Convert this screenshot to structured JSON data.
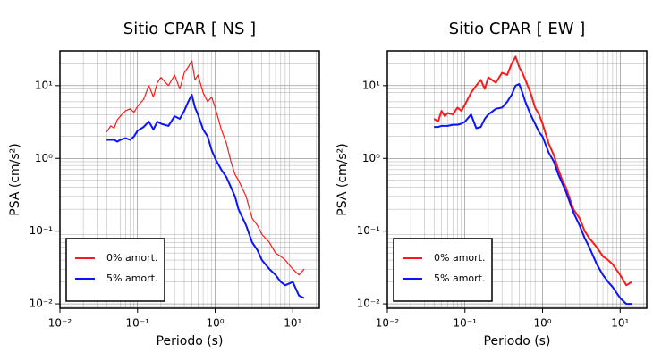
{
  "chart_data": [
    {
      "type": "line",
      "title": "Sitio CPAR [ NS ]",
      "x_label": "Periodo (s)",
      "y_label": "PSA (cm/s²)",
      "x": [
        0.04,
        0.045,
        0.05,
        0.055,
        0.06,
        0.07,
        0.08,
        0.09,
        0.1,
        0.12,
        0.14,
        0.16,
        0.18,
        0.2,
        0.25,
        0.3,
        0.35,
        0.4,
        0.45,
        0.5,
        0.55,
        0.6,
        0.7,
        0.8,
        0.9,
        1,
        1.2,
        1.4,
        1.6,
        1.8,
        2,
        2.5,
        3,
        3.5,
        4,
        5,
        6,
        7,
        8,
        10,
        12,
        14
      ],
      "series": [
        {
          "name": "0% amort.",
          "color": "#ff1a1a",
          "values": [
            2.3,
            2.8,
            2.6,
            3.4,
            3.8,
            4.5,
            4.8,
            4.3,
            5.2,
            6.5,
            10,
            7,
            11,
            13,
            10,
            14,
            9,
            15,
            18,
            22,
            12,
            14,
            8,
            6,
            7,
            5,
            2.5,
            1.6,
            0.9,
            0.6,
            0.5,
            0.3,
            0.15,
            0.12,
            0.09,
            0.07,
            0.05,
            0.045,
            0.04,
            0.03,
            0.025,
            0.03
          ]
        },
        {
          "name": "5% amort.",
          "color": "#0a14ff",
          "values": [
            1.8,
            1.8,
            1.8,
            1.7,
            1.8,
            1.9,
            1.8,
            2.0,
            2.4,
            2.7,
            3.2,
            2.5,
            3.2,
            3.0,
            2.8,
            3.8,
            3.5,
            4.5,
            6,
            7.5,
            5,
            4,
            2.5,
            2,
            1.3,
            1,
            0.7,
            0.55,
            0.4,
            0.3,
            0.2,
            0.12,
            0.07,
            0.055,
            0.04,
            0.03,
            0.025,
            0.02,
            0.018,
            0.02,
            0.013,
            0.012
          ]
        }
      ],
      "log_x": true,
      "log_y": true,
      "grid": true,
      "minor_grid": true,
      "legend": "lower left",
      "xlim": [
        0.01,
        22
      ],
      "ylim": [
        0.0087,
        30
      ],
      "xticks": [
        {
          "value": 0.01,
          "label": "10⁻²"
        },
        {
          "value": 0.1,
          "label": "10⁻¹"
        },
        {
          "value": 1,
          "label": "10⁰"
        },
        {
          "value": 10,
          "label": "10¹"
        }
      ],
      "yticks": [
        {
          "value": 0.01,
          "label": "10⁻²"
        },
        {
          "value": 0.1,
          "label": "10⁻¹"
        },
        {
          "value": 1,
          "label": "10⁰"
        },
        {
          "value": 10,
          "label": "10¹"
        }
      ]
    },
    {
      "type": "line",
      "title": "Sitio CPAR [ EW ]",
      "x_label": "Periodo (s)",
      "y_label": "PSA (cm/s²)",
      "x": [
        0.04,
        0.045,
        0.05,
        0.055,
        0.06,
        0.07,
        0.08,
        0.09,
        0.1,
        0.12,
        0.14,
        0.16,
        0.18,
        0.2,
        0.25,
        0.3,
        0.35,
        0.4,
        0.45,
        0.5,
        0.55,
        0.6,
        0.7,
        0.8,
        0.9,
        1,
        1.2,
        1.4,
        1.6,
        1.8,
        2,
        2.5,
        3,
        3.5,
        4,
        5,
        6,
        7,
        8,
        10,
        12,
        14
      ],
      "series": [
        {
          "name": "0% amort.",
          "color": "#ff1a1a",
          "values": [
            3.5,
            3.2,
            4.5,
            3.8,
            4.2,
            4,
            5,
            4.5,
            5.5,
            8,
            10,
            12,
            9,
            13,
            11,
            15,
            14,
            20,
            25,
            18,
            15,
            12,
            8,
            5,
            4,
            3,
            1.6,
            1.1,
            0.7,
            0.5,
            0.4,
            0.2,
            0.15,
            0.1,
            0.08,
            0.06,
            0.045,
            0.04,
            0.035,
            0.025,
            0.018,
            0.02
          ]
        },
        {
          "name": "5% amort.",
          "color": "#0a14ff",
          "values": [
            2.7,
            2.7,
            2.8,
            2.8,
            2.8,
            2.9,
            2.9,
            3.0,
            3.2,
            4.0,
            2.6,
            2.7,
            3.5,
            4.0,
            4.8,
            5,
            6,
            7.5,
            10,
            10.5,
            8,
            6,
            4,
            3,
            2.3,
            2,
            1.2,
            0.9,
            0.6,
            0.45,
            0.35,
            0.18,
            0.12,
            0.08,
            0.06,
            0.035,
            0.025,
            0.02,
            0.017,
            0.012,
            0.01,
            0.01
          ]
        }
      ],
      "log_x": true,
      "log_y": true,
      "grid": true,
      "minor_grid": true,
      "legend": "lower left",
      "xlim": [
        0.01,
        22
      ],
      "ylim": [
        0.0087,
        30
      ],
      "xticks": [
        {
          "value": 0.01,
          "label": "10⁻²"
        },
        {
          "value": 0.1,
          "label": "10⁻¹"
        },
        {
          "value": 1,
          "label": "10⁰"
        },
        {
          "value": 10,
          "label": "10¹"
        }
      ],
      "yticks": [
        {
          "value": 0.01,
          "label": "10⁻²"
        },
        {
          "value": 0.1,
          "label": "10⁻¹"
        },
        {
          "value": 1,
          "label": "10⁰"
        },
        {
          "value": 10,
          "label": "10¹"
        }
      ]
    }
  ]
}
